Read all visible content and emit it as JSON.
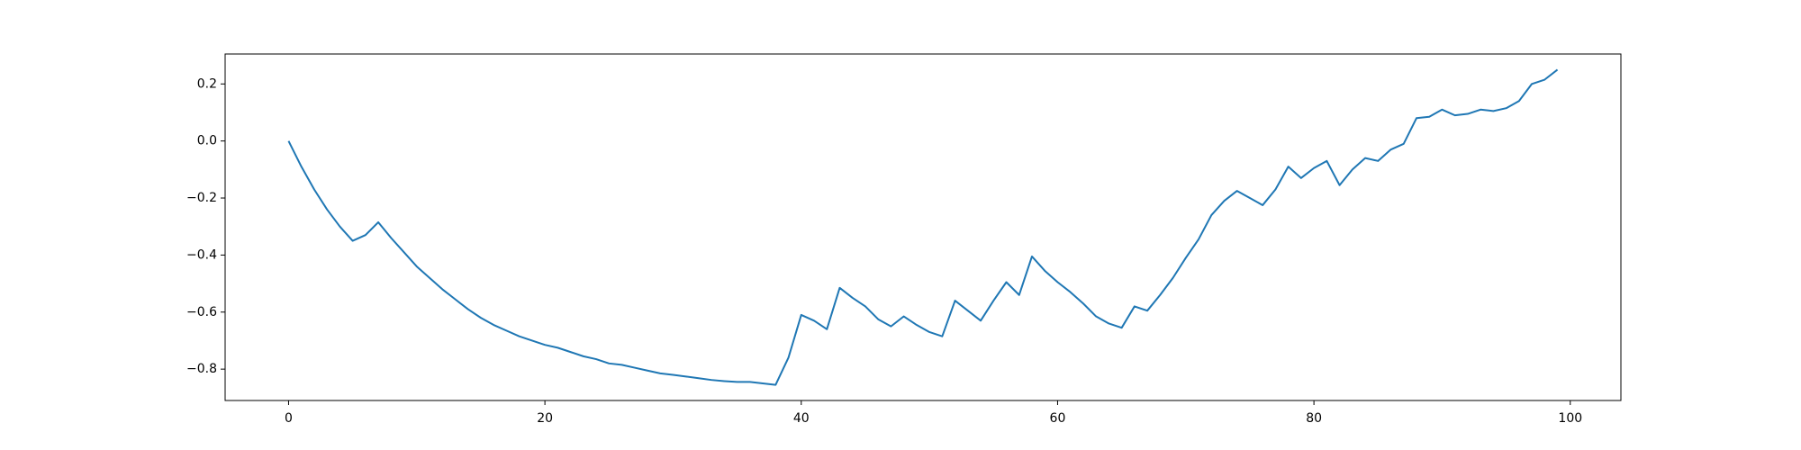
{
  "chart_data": {
    "type": "line",
    "x": [
      0,
      1,
      2,
      3,
      4,
      5,
      6,
      7,
      8,
      9,
      10,
      11,
      12,
      13,
      14,
      15,
      16,
      17,
      18,
      19,
      20,
      21,
      22,
      23,
      24,
      25,
      26,
      27,
      28,
      29,
      30,
      31,
      32,
      33,
      34,
      35,
      36,
      37,
      38,
      39,
      40,
      41,
      42,
      43,
      44,
      45,
      46,
      47,
      48,
      49,
      50,
      51,
      52,
      53,
      54,
      55,
      56,
      57,
      58,
      59,
      60,
      61,
      62,
      63,
      64,
      65,
      66,
      67,
      68,
      69,
      70,
      71,
      72,
      73,
      74,
      75,
      76,
      77,
      78,
      79,
      80,
      81,
      82,
      83,
      84,
      85,
      86,
      87,
      88,
      89,
      90,
      91,
      92,
      93,
      94,
      95,
      96,
      97,
      98,
      99
    ],
    "series": [
      {
        "color": "#1f77b4",
        "values": [
          0,
          -0.09,
          -0.17,
          -0.24,
          -0.3,
          -0.35,
          -0.33,
          -0.285,
          -0.34,
          -0.39,
          -0.44,
          -0.48,
          -0.52,
          -0.555,
          -0.59,
          -0.62,
          -0.645,
          -0.665,
          -0.685,
          -0.7,
          -0.715,
          -0.725,
          -0.74,
          -0.755,
          -0.765,
          -0.78,
          -0.785,
          -0.795,
          -0.805,
          -0.815,
          -0.82,
          -0.826,
          -0.832,
          -0.838,
          -0.842,
          -0.845,
          -0.845,
          -0.85,
          -0.855,
          -0.76,
          -0.61,
          -0.63,
          -0.66,
          -0.515,
          -0.55,
          -0.58,
          -0.625,
          -0.65,
          -0.615,
          -0.645,
          -0.67,
          -0.685,
          -0.56,
          -0.595,
          -0.63,
          -0.56,
          -0.495,
          -0.54,
          -0.405,
          -0.455,
          -0.495,
          -0.53,
          -0.57,
          -0.615,
          -0.64,
          -0.655,
          -0.58,
          -0.595,
          -0.54,
          -0.48,
          -0.41,
          -0.345,
          -0.26,
          -0.21,
          -0.175,
          -0.2,
          -0.225,
          -0.17,
          -0.09,
          -0.13,
          -0.095,
          -0.07,
          -0.155,
          -0.1,
          -0.06,
          -0.07,
          -0.03,
          -0.01,
          0.08,
          0.085,
          0.11,
          0.09,
          0.095,
          0.11,
          0.105,
          0.115,
          0.14,
          0.2,
          0.215,
          0.25
        ]
      }
    ],
    "xlim": [
      -4.95,
      103.95
    ],
    "ylim": [
      -0.91,
      0.305
    ],
    "xticks": [
      0,
      20,
      40,
      60,
      80,
      100
    ],
    "yticks": [
      {
        "value": -0.8,
        "label": "−0.8"
      },
      {
        "value": -0.6,
        "label": "−0.6"
      },
      {
        "value": -0.4,
        "label": "−0.4"
      },
      {
        "value": -0.2,
        "label": "−0.2"
      },
      {
        "value": 0,
        "label": "0.0"
      },
      0.2
    ],
    "grid": false
  }
}
